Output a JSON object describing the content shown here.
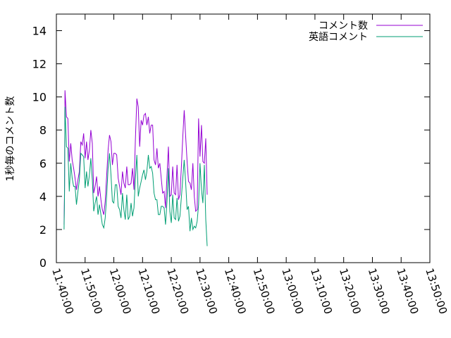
{
  "chart_data": {
    "type": "line",
    "title": "",
    "xlabel": "",
    "ylabel": "1秒毎のコメント数",
    "xlim": [
      "11:40:00",
      "13:50:00"
    ],
    "ylim": [
      0,
      15
    ],
    "x_ticks": [
      "11:40:00",
      "11:50:00",
      "12:00:00",
      "12:10:00",
      "12:20:00",
      "12:30:00",
      "12:40:00",
      "12:50:00",
      "13:00:00",
      "13:10:00",
      "13:20:00",
      "13:30:00",
      "13:40:00",
      "13:50:00"
    ],
    "y_ticks": [
      0,
      2,
      4,
      6,
      8,
      10,
      12,
      14
    ],
    "grid": false,
    "legend_position": "top-right",
    "series": [
      {
        "name": "コメント数",
        "color": "#9400D3",
        "points": [
          [
            "11:42:40",
            2.3
          ],
          [
            "11:42:50",
            4.5
          ],
          [
            "11:43:00",
            10.4
          ],
          [
            "11:43:30",
            8.8
          ],
          [
            "11:44:00",
            8.7
          ],
          [
            "11:44:30",
            6.1
          ],
          [
            "11:45:00",
            7.2
          ],
          [
            "11:45:30",
            6.2
          ],
          [
            "11:46:00",
            5.7
          ],
          [
            "11:46:30",
            5.1
          ],
          [
            "11:47:00",
            4.4
          ],
          [
            "11:47:30",
            5.0
          ],
          [
            "11:48:00",
            5.5
          ],
          [
            "11:48:30",
            7.3
          ],
          [
            "11:49:00",
            7.1
          ],
          [
            "11:49:30",
            7.8
          ],
          [
            "11:50:00",
            6.3
          ],
          [
            "11:50:30",
            7.3
          ],
          [
            "11:51:00",
            6.2
          ],
          [
            "11:51:30",
            6.8
          ],
          [
            "11:52:00",
            8.0
          ],
          [
            "11:52:30",
            7.2
          ],
          [
            "11:53:00",
            4.2
          ],
          [
            "11:53:30",
            4.6
          ],
          [
            "11:54:00",
            5.2
          ],
          [
            "11:54:30",
            4.0
          ],
          [
            "11:55:00",
            4.6
          ],
          [
            "11:55:30",
            3.8
          ],
          [
            "11:56:00",
            3.2
          ],
          [
            "11:56:30",
            2.9
          ],
          [
            "11:57:00",
            3.7
          ],
          [
            "11:57:30",
            5.2
          ],
          [
            "11:58:00",
            6.8
          ],
          [
            "11:58:30",
            7.7
          ],
          [
            "11:59:00",
            7.3
          ],
          [
            "11:59:30",
            5.9
          ],
          [
            "12:00:00",
            6.6
          ],
          [
            "12:00:30",
            6.6
          ],
          [
            "12:01:00",
            6.5
          ],
          [
            "12:01:30",
            5.1
          ],
          [
            "12:02:00",
            4.6
          ],
          [
            "12:02:30",
            4.1
          ],
          [
            "12:03:00",
            5.5
          ],
          [
            "12:03:30",
            4.8
          ],
          [
            "12:04:00",
            4.5
          ],
          [
            "12:04:30",
            5.8
          ],
          [
            "12:05:00",
            4.7
          ],
          [
            "12:05:30",
            4.7
          ],
          [
            "12:06:00",
            4.8
          ],
          [
            "12:06:30",
            5.7
          ],
          [
            "12:07:00",
            4.4
          ],
          [
            "12:07:30",
            7.4
          ],
          [
            "12:08:00",
            9.9
          ],
          [
            "12:08:30",
            9.4
          ],
          [
            "12:09:00",
            7.0
          ],
          [
            "12:09:30",
            8.6
          ],
          [
            "12:10:00",
            8.3
          ],
          [
            "12:10:30",
            8.9
          ],
          [
            "12:11:00",
            9.0
          ],
          [
            "12:11:30",
            8.3
          ],
          [
            "12:12:00",
            8.8
          ],
          [
            "12:12:30",
            7.8
          ],
          [
            "12:13:00",
            8.3
          ],
          [
            "12:13:30",
            8.3
          ],
          [
            "12:14:00",
            6.2
          ],
          [
            "12:14:30",
            5.9
          ],
          [
            "12:15:00",
            6.9
          ],
          [
            "12:15:30",
            5.7
          ],
          [
            "12:16:00",
            6.0
          ],
          [
            "12:16:30",
            5.1
          ],
          [
            "12:17:00",
            4.2
          ],
          [
            "12:17:30",
            4.3
          ],
          [
            "12:18:00",
            3.3
          ],
          [
            "12:18:30",
            5.3
          ],
          [
            "12:19:00",
            7.0
          ],
          [
            "12:19:30",
            4.0
          ],
          [
            "12:20:00",
            4.1
          ],
          [
            "12:20:30",
            5.8
          ],
          [
            "12:21:00",
            4.2
          ],
          [
            "12:21:30",
            4.1
          ],
          [
            "12:22:00",
            5.9
          ],
          [
            "12:22:30",
            3.8
          ],
          [
            "12:23:00",
            4.1
          ],
          [
            "12:23:30",
            5.7
          ],
          [
            "12:24:00",
            7.6
          ],
          [
            "12:24:30",
            9.2
          ],
          [
            "12:25:00",
            7.6
          ],
          [
            "12:25:30",
            6.1
          ],
          [
            "12:26:00",
            4.9
          ],
          [
            "12:26:30",
            4.8
          ],
          [
            "12:27:00",
            4.4
          ],
          [
            "12:27:30",
            6.0
          ],
          [
            "12:28:00",
            4.0
          ],
          [
            "12:28:30",
            3.1
          ],
          [
            "12:29:00",
            3.2
          ],
          [
            "12:29:30",
            8.7
          ],
          [
            "12:30:00",
            6.4
          ],
          [
            "12:30:30",
            8.3
          ],
          [
            "12:31:00",
            6.1
          ],
          [
            "12:31:30",
            6.0
          ],
          [
            "12:32:00",
            7.5
          ],
          [
            "12:32:30",
            4.1
          ]
        ]
      },
      {
        "name": "英語コメント",
        "color": "#009E73",
        "points": [
          [
            "11:42:40",
            2.0
          ],
          [
            "11:42:50",
            4.2
          ],
          [
            "11:43:00",
            9.4
          ],
          [
            "11:43:30",
            7.0
          ],
          [
            "11:44:00",
            6.9
          ],
          [
            "11:44:30",
            4.3
          ],
          [
            "11:45:00",
            6.0
          ],
          [
            "11:45:30",
            5.1
          ],
          [
            "11:46:00",
            4.6
          ],
          [
            "11:46:30",
            4.6
          ],
          [
            "11:47:00",
            3.5
          ],
          [
            "11:47:30",
            4.3
          ],
          [
            "11:48:00",
            5.0
          ],
          [
            "11:48:30",
            6.6
          ],
          [
            "11:49:00",
            6.5
          ],
          [
            "11:49:30",
            6.4
          ],
          [
            "11:50:00",
            4.5
          ],
          [
            "11:50:30",
            5.5
          ],
          [
            "11:51:00",
            4.6
          ],
          [
            "11:51:30",
            5.3
          ],
          [
            "11:52:00",
            6.3
          ],
          [
            "11:52:30",
            5.0
          ],
          [
            "11:53:00",
            3.1
          ],
          [
            "11:53:30",
            3.6
          ],
          [
            "11:54:00",
            4.0
          ],
          [
            "11:54:30",
            2.9
          ],
          [
            "11:55:00",
            3.5
          ],
          [
            "11:55:30",
            2.9
          ],
          [
            "11:56:00",
            2.3
          ],
          [
            "11:56:30",
            2.1
          ],
          [
            "11:57:00",
            2.7
          ],
          [
            "11:57:30",
            4.0
          ],
          [
            "11:58:00",
            5.7
          ],
          [
            "11:58:30",
            6.6
          ],
          [
            "11:59:00",
            5.3
          ],
          [
            "11:59:30",
            3.7
          ],
          [
            "12:00:00",
            3.6
          ],
          [
            "12:00:30",
            4.7
          ],
          [
            "12:01:00",
            4.7
          ],
          [
            "12:01:30",
            3.4
          ],
          [
            "12:02:00",
            3.2
          ],
          [
            "12:02:30",
            2.7
          ],
          [
            "12:03:00",
            4.2
          ],
          [
            "12:03:30",
            3.2
          ],
          [
            "12:04:00",
            2.6
          ],
          [
            "12:04:30",
            4.1
          ],
          [
            "12:05:00",
            2.6
          ],
          [
            "12:05:30",
            2.8
          ],
          [
            "12:06:00",
            3.6
          ],
          [
            "12:06:30",
            2.8
          ],
          [
            "12:07:00",
            3.3
          ],
          [
            "12:07:30",
            5.0
          ],
          [
            "12:08:00",
            6.5
          ],
          [
            "12:08:30",
            4.0
          ],
          [
            "12:09:00",
            4.5
          ],
          [
            "12:09:30",
            4.9
          ],
          [
            "12:10:00",
            5.3
          ],
          [
            "12:10:30",
            5.6
          ],
          [
            "12:11:00",
            5.0
          ],
          [
            "12:11:30",
            5.5
          ],
          [
            "12:12:00",
            6.5
          ],
          [
            "12:12:30",
            5.7
          ],
          [
            "12:13:00",
            5.8
          ],
          [
            "12:13:30",
            5.4
          ],
          [
            "12:14:00",
            4.2
          ],
          [
            "12:14:30",
            3.8
          ],
          [
            "12:15:00",
            3.8
          ],
          [
            "12:15:30",
            2.9
          ],
          [
            "12:16:00",
            2.9
          ],
          [
            "12:16:30",
            3.4
          ],
          [
            "12:17:00",
            3.4
          ],
          [
            "12:17:30",
            3.3
          ],
          [
            "12:18:00",
            2.3
          ],
          [
            "12:18:30",
            3.7
          ],
          [
            "12:19:00",
            5.7
          ],
          [
            "12:19:30",
            3.1
          ],
          [
            "12:20:00",
            2.4
          ],
          [
            "12:20:30",
            4.1
          ],
          [
            "12:21:00",
            2.7
          ],
          [
            "12:21:30",
            2.6
          ],
          [
            "12:22:00",
            3.9
          ],
          [
            "12:22:30",
            2.5
          ],
          [
            "12:23:00",
            2.8
          ],
          [
            "12:23:30",
            3.9
          ],
          [
            "12:24:00",
            5.1
          ],
          [
            "12:24:30",
            6.2
          ],
          [
            "12:25:00",
            4.8
          ],
          [
            "12:25:30",
            3.2
          ],
          [
            "12:26:00",
            3.4
          ],
          [
            "12:26:30",
            1.9
          ],
          [
            "12:27:00",
            2.7
          ],
          [
            "12:27:30",
            2.0
          ],
          [
            "12:28:00",
            2.2
          ],
          [
            "12:28:30",
            2.1
          ],
          [
            "12:29:00",
            2.5
          ],
          [
            "12:29:30",
            3.5
          ],
          [
            "12:30:00",
            6.0
          ],
          [
            "12:30:30",
            4.4
          ],
          [
            "12:31:00",
            3.6
          ],
          [
            "12:31:30",
            5.9
          ],
          [
            "12:32:00",
            2.6
          ],
          [
            "12:32:30",
            1.0
          ]
        ]
      }
    ]
  }
}
